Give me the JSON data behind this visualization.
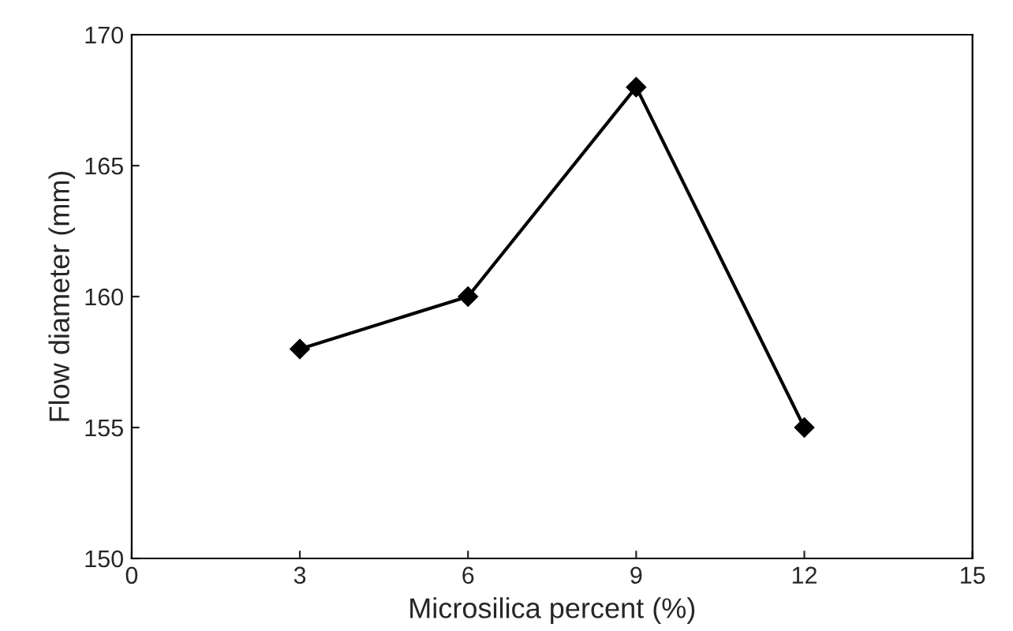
{
  "chart_data": {
    "type": "line",
    "xlabel": "Microsilica percent (%)",
    "ylabel": "Flow diameter (mm)",
    "x": [
      3,
      6,
      9,
      12
    ],
    "series": [
      {
        "color": "#000000",
        "values": [
          158,
          160,
          168,
          155
        ]
      }
    ],
    "xlim": [
      0,
      15
    ],
    "xticks": [
      0,
      3,
      6,
      9,
      12,
      15
    ],
    "ylim": [
      150,
      170
    ],
    "yticks": [
      150,
      155,
      160,
      165,
      170
    ],
    "grid": false,
    "legend": false,
    "marker": "diamond",
    "line_style": "solid"
  }
}
